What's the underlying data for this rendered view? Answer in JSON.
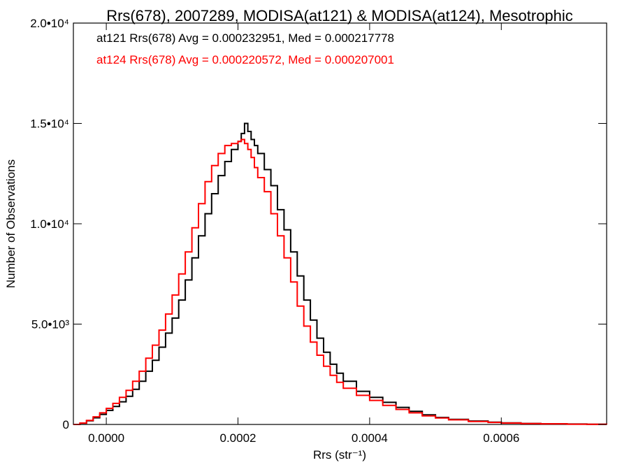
{
  "chart_data": {
    "type": "line",
    "title": "Rrs(678), 2007289, MODISA(at121) & MODISA(at124), Mesotrophic",
    "xlabel": "Rrs (str⁻¹)",
    "ylabel": "Number of Observations",
    "xlim": [
      -5e-05,
      0.00076
    ],
    "ylim": [
      0,
      20000
    ],
    "xticks": [
      {
        "value": 0.0,
        "label": "0.0000"
      },
      {
        "value": 0.0002,
        "label": "0.0002"
      },
      {
        "value": 0.0004,
        "label": "0.0004"
      },
      {
        "value": 0.0006,
        "label": "0.0006"
      }
    ],
    "yticks": [
      {
        "value": 0,
        "label": "0"
      },
      {
        "value": 5000,
        "label": "5.0•10³"
      },
      {
        "value": 10000,
        "label": "1.0•10⁴"
      },
      {
        "value": 15000,
        "label": "1.5•10⁴"
      },
      {
        "value": 20000,
        "label": "2.0•10⁴"
      }
    ],
    "annotations": [
      {
        "text": "at121 Rrs(678) Avg = 0.000232951, Med = 0.000217778",
        "color": "#000000"
      },
      {
        "text": "at124 Rrs(678) Avg = 0.000220572, Med = 0.000207001",
        "color": "#ff0000"
      }
    ],
    "series": [
      {
        "color": "#000000",
        "x": [
          -5e-05,
          -4e-05,
          -3e-05,
          -2e-05,
          -1e-05,
          0.0,
          1e-05,
          2e-05,
          3e-05,
          4e-05,
          5e-05,
          6e-05,
          7e-05,
          8e-05,
          9e-05,
          0.0001,
          0.00011,
          0.00012,
          0.00013,
          0.00014,
          0.00015,
          0.00016,
          0.00017,
          0.00018,
          0.00019,
          0.0002,
          0.000205,
          0.00021,
          0.000215,
          0.00022,
          0.000225,
          0.00023,
          0.00024,
          0.00025,
          0.00026,
          0.00027,
          0.00028,
          0.00029,
          0.0003,
          0.00031,
          0.00032,
          0.00033,
          0.00034,
          0.00035,
          0.00036,
          0.00038,
          0.0004,
          0.00042,
          0.00044,
          0.00046,
          0.00048,
          0.0005,
          0.00052,
          0.00055,
          0.00058,
          0.0006,
          0.00063,
          0.00066,
          0.0007,
          0.00073,
          0.00076
        ],
        "y": [
          0,
          60,
          180,
          330,
          500,
          700,
          900,
          1130,
          1400,
          1750,
          2150,
          2650,
          3200,
          3850,
          4550,
          5300,
          6200,
          7200,
          8300,
          9400,
          10500,
          11500,
          12400,
          13100,
          13700,
          14100,
          14500,
          15000,
          14600,
          14200,
          13900,
          13500,
          12700,
          11900,
          10700,
          9700,
          8600,
          7400,
          6200,
          5200,
          4300,
          3600,
          3000,
          2550,
          2150,
          1650,
          1350,
          1100,
          850,
          650,
          480,
          350,
          250,
          170,
          110,
          80,
          50,
          35,
          20,
          10,
          5
        ]
      },
      {
        "color": "#ff0000",
        "x": [
          -5e-05,
          -4e-05,
          -3e-05,
          -2e-05,
          -1e-05,
          0.0,
          1e-05,
          2e-05,
          3e-05,
          4e-05,
          5e-05,
          6e-05,
          7e-05,
          8e-05,
          9e-05,
          0.0001,
          0.00011,
          0.00012,
          0.00013,
          0.00014,
          0.00015,
          0.00016,
          0.00017,
          0.00018,
          0.00019,
          0.0002,
          0.000205,
          0.00021,
          0.000215,
          0.00022,
          0.000225,
          0.00023,
          0.00024,
          0.00025,
          0.00026,
          0.00027,
          0.00028,
          0.00029,
          0.0003,
          0.00031,
          0.00032,
          0.00033,
          0.00034,
          0.00035,
          0.00036,
          0.00038,
          0.0004,
          0.00042,
          0.00044,
          0.00046,
          0.00048,
          0.0005,
          0.00052,
          0.00055,
          0.00058,
          0.0006,
          0.00063,
          0.00066,
          0.0007,
          0.00073,
          0.00076
        ],
        "y": [
          0,
          70,
          200,
          380,
          580,
          800,
          1050,
          1350,
          1700,
          2150,
          2650,
          3300,
          3950,
          4700,
          5500,
          6450,
          7500,
          8600,
          9800,
          11000,
          12100,
          12900,
          13500,
          13900,
          14000,
          14100,
          14200,
          14000,
          13700,
          13300,
          12800,
          12300,
          11600,
          10500,
          9400,
          8300,
          7100,
          5900,
          4900,
          4100,
          3450,
          2900,
          2450,
          2100,
          1800,
          1450,
          1200,
          950,
          750,
          580,
          430,
          320,
          230,
          150,
          100,
          70,
          45,
          30,
          15,
          8,
          4
        ]
      }
    ]
  }
}
